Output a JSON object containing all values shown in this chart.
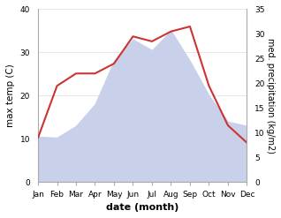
{
  "months": [
    "Jan",
    "Feb",
    "Mar",
    "Apr",
    "May",
    "Jun",
    "Jul",
    "Aug",
    "Sep",
    "Oct",
    "Nov",
    "Dec"
  ],
  "max_temp": [
    10.5,
    10.3,
    13.0,
    18.0,
    28.0,
    33.0,
    30.5,
    35.0,
    28.0,
    20.0,
    14.0,
    13.0
  ],
  "precipitation": [
    9.0,
    19.5,
    22.0,
    22.0,
    24.0,
    29.5,
    28.5,
    30.5,
    31.5,
    19.5,
    11.5,
    8.0
  ],
  "temp_fill_color": "#c8d0ea",
  "precip_color": "#cc3333",
  "xlabel": "date (month)",
  "ylabel_left": "max temp (C)",
  "ylabel_right": "med. precipitation (kg/m2)",
  "ylim_left": [
    0,
    40
  ],
  "ylim_right": [
    0,
    35
  ],
  "yticks_left": [
    0,
    10,
    20,
    30,
    40
  ],
  "yticks_right": [
    0,
    5,
    10,
    15,
    20,
    25,
    30,
    35
  ],
  "bg_color": "#ffffff",
  "spine_color": "#aaaaaa",
  "grid_color": "#dddddd"
}
